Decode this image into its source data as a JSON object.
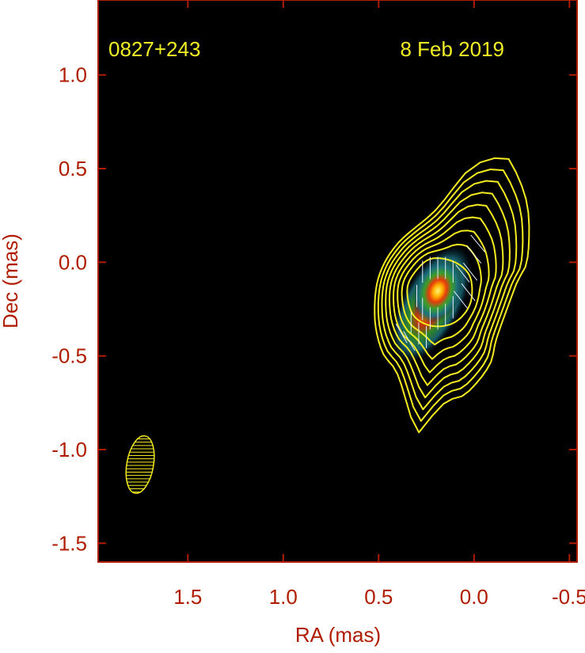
{
  "chart_data": {
    "type": "heatmap",
    "title": "",
    "source_name": "0827+243",
    "epoch": "8 Feb 2019",
    "xlabel": "RA (mas)",
    "ylabel": "Dec (mas)",
    "xlim": [
      1.97,
      -0.54
    ],
    "ylim": [
      -1.6,
      1.4
    ],
    "xticks": [
      1.5,
      1.0,
      0.5,
      0.0,
      -0.5
    ],
    "xtick_labels": [
      "1.5",
      "1.0",
      "0.5",
      "0.0",
      "-0.5"
    ],
    "yticks": [
      1.0,
      0.5,
      0.0,
      -0.5,
      -1.0,
      -1.5
    ],
    "ytick_labels": [
      "1.0",
      "0.5",
      "0.0",
      "-0.5",
      "-1.0",
      "-1.5"
    ],
    "intensity_peak": {
      "x": 0.19,
      "y": -0.14
    },
    "contour_levels": 9,
    "beam": {
      "x": 1.75,
      "y": -1.08,
      "major": 0.31,
      "minor": 0.14
    },
    "colors": {
      "axis": "#b01c00",
      "text_overlay": "#f2ee24",
      "contour": "#f5ec20",
      "background": "#000000"
    }
  }
}
